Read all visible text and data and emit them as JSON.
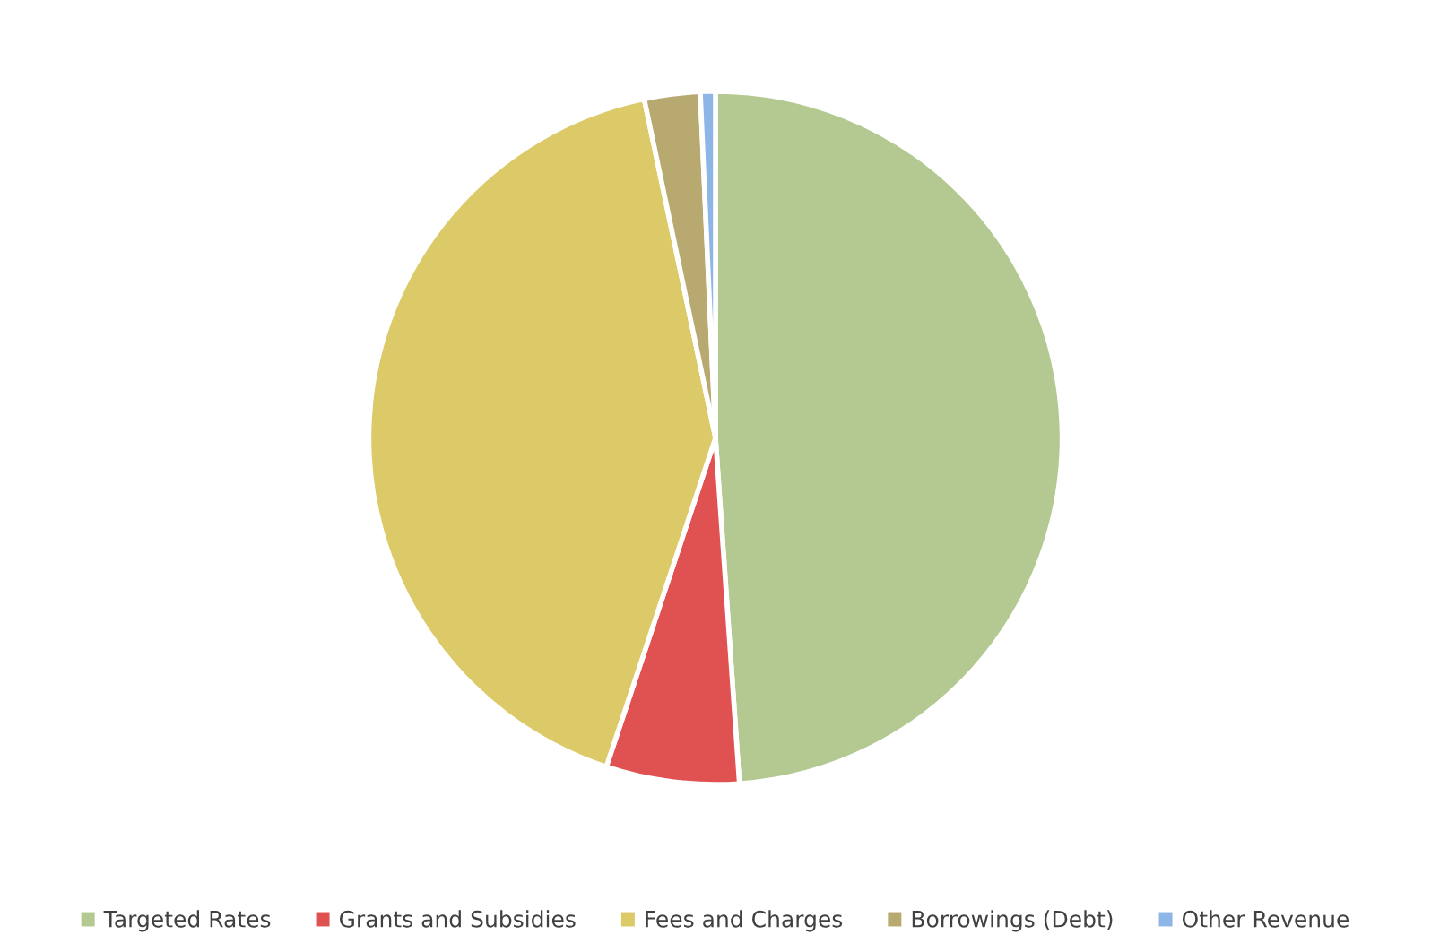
{
  "chart_data": {
    "type": "pie",
    "categories": [
      "Targeted Rates",
      "Grants and Subsidies",
      "Fees and Charges",
      "Borrowings (Debt)",
      "Other Revenue"
    ],
    "values": [
      48.9,
      6.2,
      41.6,
      2.6,
      0.7
    ],
    "colors": [
      "#b3c991",
      "#e05252",
      "#dcc968",
      "#b8a971",
      "#8db6e6"
    ],
    "legend": "bottom"
  }
}
